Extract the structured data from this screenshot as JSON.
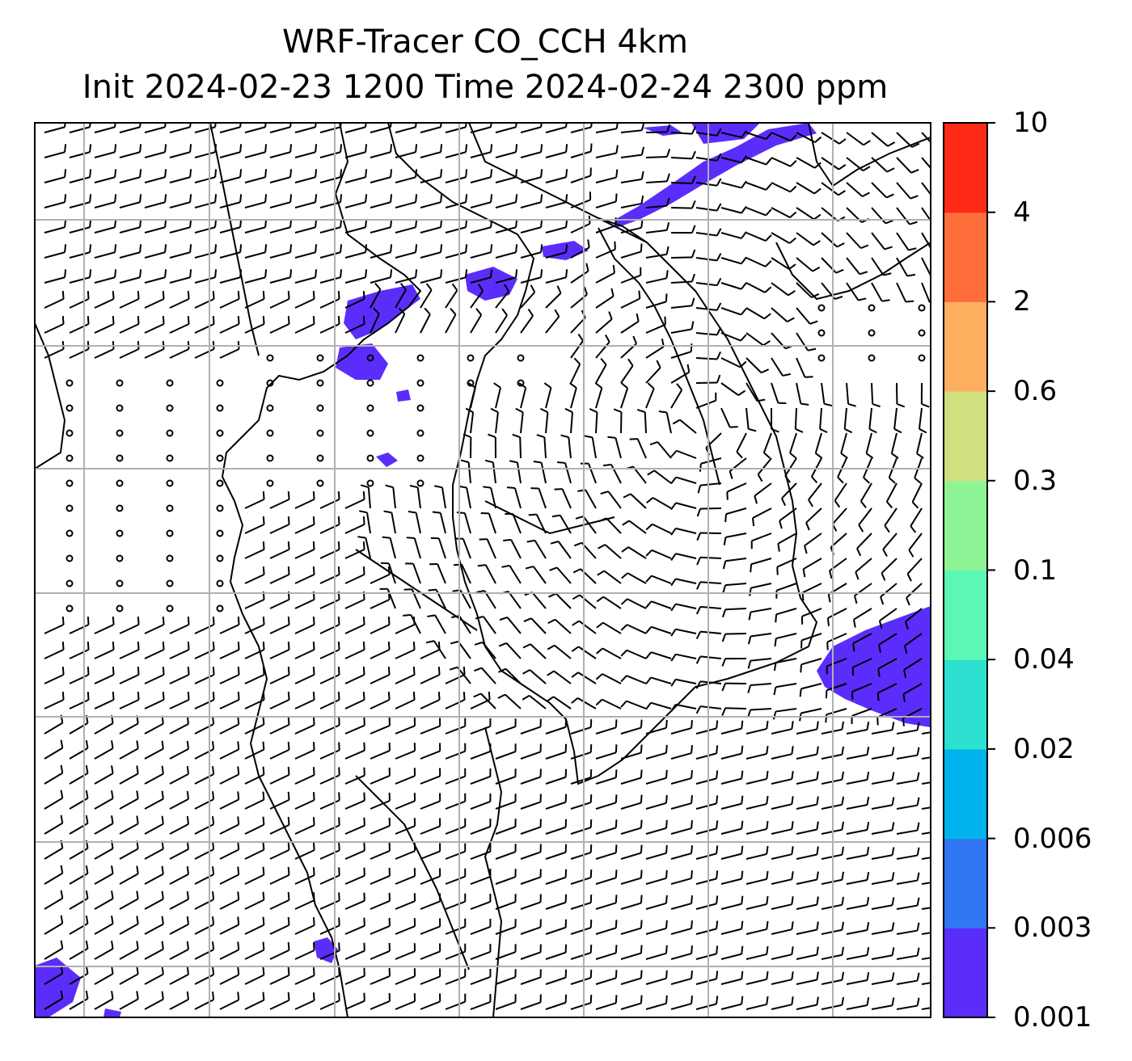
{
  "title": {
    "line1": "WRF-Tracer CO_CCH 4km",
    "line2": "Init 2024-02-23 1200 Time 2024-02-24 2300 ppm"
  },
  "map": {
    "field": "CO_CCH tracer concentration (ppm) with wind barbs",
    "gridlines": true,
    "features": [
      "coastlines",
      "country borders",
      "wind barbs",
      "calm circles"
    ],
    "tracer_color": "#5b2dfb"
  },
  "colorbar": {
    "labels": [
      "10",
      "4",
      "2",
      "0.6",
      "0.3",
      "0.1",
      "0.04",
      "0.02",
      "0.006",
      "0.003",
      "0.001"
    ],
    "colors": [
      "#5b2dfb",
      "#3177f3",
      "#00b3ec",
      "#2ee0d0",
      "#5cf7b5",
      "#8ff496",
      "#d0e07f",
      "#fdaf5f",
      "#ff6e3a",
      "#fe2a16"
    ]
  }
}
